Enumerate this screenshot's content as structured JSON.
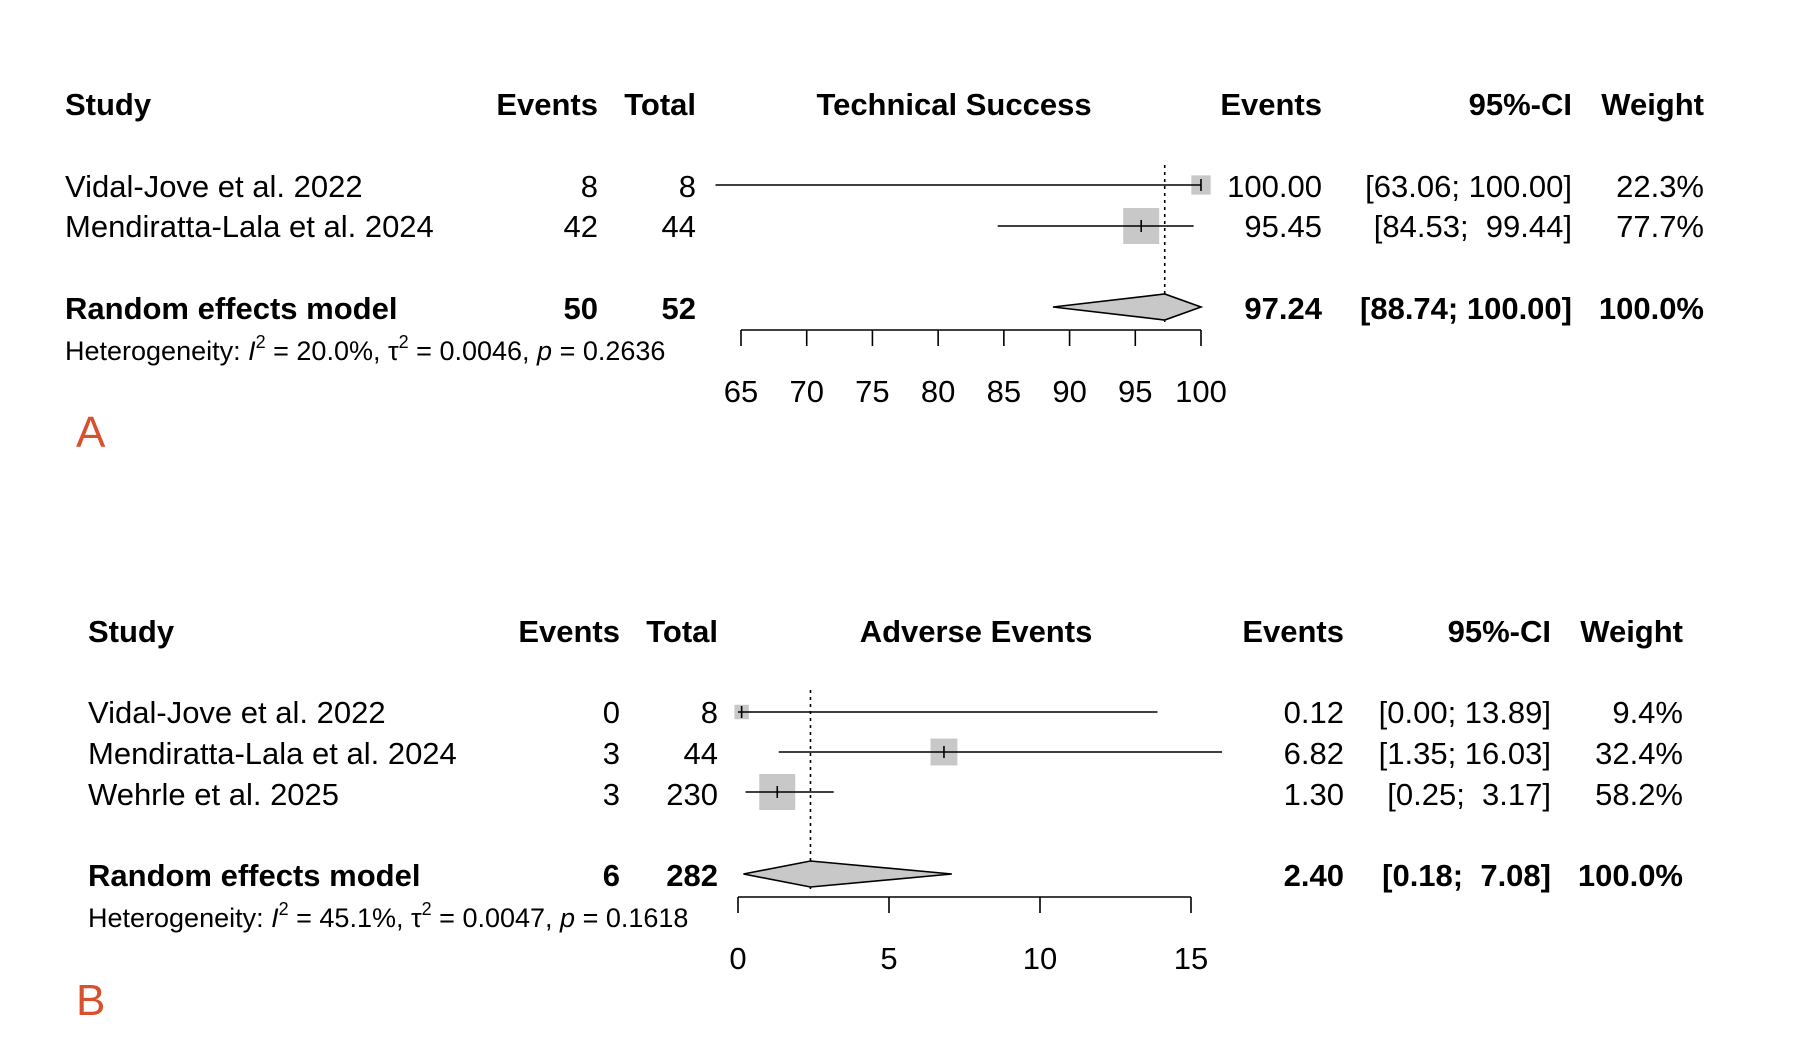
{
  "colors": {
    "box": "#c8c8c8",
    "line": "#000000",
    "panel_letter": "#d9502e"
  },
  "chart_data": [
    {
      "type": "forest",
      "panel": "A",
      "title": "Technical Success",
      "columns": {
        "study": "Study",
        "events": "Events",
        "total": "Total",
        "effect": "Events",
        "ci": "95%-CI",
        "weight": "Weight"
      },
      "xlim": [
        65,
        100
      ],
      "ticks": [
        65,
        70,
        75,
        80,
        85,
        90,
        95,
        100
      ],
      "tick_labels": [
        "65",
        "70",
        "75",
        "80",
        "85",
        "90",
        "95",
        "100"
      ],
      "reference_line": 97.24,
      "studies": [
        {
          "name": "Vidal-Jove et al. 2022",
          "events": "8",
          "total": "8",
          "est": 100.0,
          "lo": 63.06,
          "hi": 100.0,
          "weight_pct": 22.3,
          "effect_text": "100.00",
          "ci_text": "[63.06; 100.00]",
          "weight_text": "22.3%"
        },
        {
          "name": "Mendiratta-Lala et al. 2024",
          "events": "42",
          "total": "44",
          "est": 95.45,
          "lo": 84.53,
          "hi": 99.44,
          "weight_pct": 77.7,
          "effect_text": "95.45",
          "ci_text": "[84.53;  99.44]",
          "weight_text": "77.7%"
        }
      ],
      "pooled": {
        "name": "Random effects model",
        "events": "50",
        "total": "52",
        "est": 97.24,
        "lo": 88.74,
        "hi": 100.0,
        "effect_text": "97.24",
        "ci_text": "[88.74; 100.00]",
        "weight_text": "100.0%"
      },
      "heterogeneity": {
        "prefix": "Heterogeneity: ",
        "i2": " = 20.0%, ",
        "tau2": " = 0.0046, ",
        "p": " = 0.2636"
      }
    },
    {
      "type": "forest",
      "panel": "B",
      "title": "Adverse Events",
      "columns": {
        "study": "Study",
        "events": "Events",
        "total": "Total",
        "effect": "Events",
        "ci": "95%-CI",
        "weight": "Weight"
      },
      "xlim": [
        0,
        15
      ],
      "ticks": [
        0,
        5,
        10,
        15
      ],
      "tick_labels": [
        "0",
        "5",
        "10",
        "15"
      ],
      "reference_line": 2.4,
      "studies": [
        {
          "name": "Vidal-Jove et al. 2022",
          "events": "0",
          "total": "8",
          "est": 0.12,
          "lo": 0.0,
          "hi": 13.89,
          "weight_pct": 9.4,
          "effect_text": "0.12",
          "ci_text": "[0.00; 13.89]",
          "weight_text": "9.4%"
        },
        {
          "name": "Mendiratta-Lala et al. 2024",
          "events": "3",
          "total": "44",
          "est": 6.82,
          "lo": 1.35,
          "hi": 16.03,
          "weight_pct": 32.4,
          "effect_text": "6.82",
          "ci_text": "[1.35; 16.03]",
          "weight_text": "32.4%"
        },
        {
          "name": "Wehrle et al. 2025",
          "events": "3",
          "total": "230",
          "est": 1.3,
          "lo": 0.25,
          "hi": 3.17,
          "weight_pct": 58.2,
          "effect_text": "1.30",
          "ci_text": "[0.25;  3.17]",
          "weight_text": "58.2%"
        }
      ],
      "pooled": {
        "name": "Random effects model",
        "events": "6",
        "total": "282",
        "est": 2.4,
        "lo": 0.18,
        "hi": 7.08,
        "effect_text": "2.40",
        "ci_text": "[0.18;  7.08]",
        "weight_text": "100.0%"
      },
      "heterogeneity": {
        "prefix": "Heterogeneity: ",
        "i2": " = 45.1%, ",
        "tau2": " = 0.0047, ",
        "p": " = 0.1618"
      }
    }
  ]
}
